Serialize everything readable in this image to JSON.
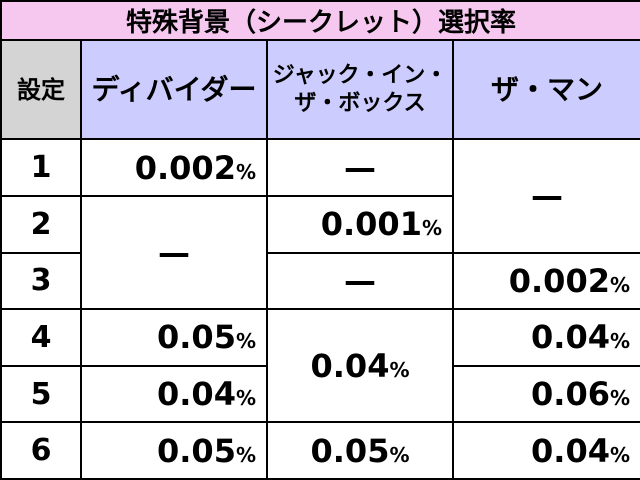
{
  "title": "特殊背景（シークレット）選択率",
  "headers": {
    "setting": "設定",
    "col1": "ディバイダー",
    "col2": [
      "ジャック・イン・",
      "ザ・ボックス"
    ],
    "col3": "ザ・マン"
  },
  "rows": [
    {
      "setting": "1",
      "col1": {
        "number": "0.002",
        "unit": "%"
      },
      "col2": "—",
      "col3": "—"
    },
    {
      "setting": "2",
      "col1": "—",
      "col2": {
        "number": "0.001",
        "unit": "%"
      }
    },
    {
      "setting": "3",
      "col2": "—",
      "col3": {
        "number": "0.002",
        "unit": "%"
      }
    },
    {
      "setting": "4",
      "col1": {
        "number": "0.05",
        "unit": "%"
      },
      "col2": {
        "number": "0.04",
        "unit": "%"
      },
      "col3": {
        "number": "0.04",
        "unit": "%"
      }
    },
    {
      "setting": "5",
      "col1": {
        "number": "0.04",
        "unit": "%"
      },
      "col3": {
        "number": "0.06",
        "unit": "%"
      }
    },
    {
      "setting": "6",
      "col1": {
        "number": "0.05",
        "unit": "%"
      },
      "col2": {
        "number": "0.05",
        "unit": "%"
      },
      "col3": {
        "number": "0.04",
        "unit": "%"
      }
    }
  ]
}
